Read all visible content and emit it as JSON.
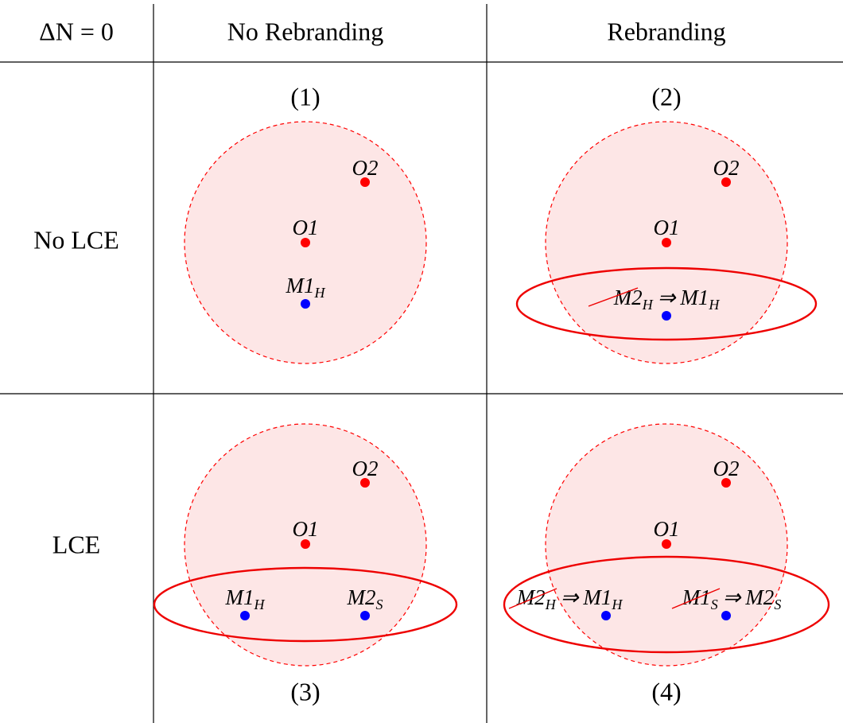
{
  "header": {
    "corner": "ΔN = 0",
    "columns": [
      "No Rebranding",
      "Rebranding"
    ]
  },
  "rows": [
    "No LCE",
    "LCE"
  ],
  "cells": [
    {
      "tag": "(1)",
      "labels": [
        {
          "text": "O2"
        },
        {
          "text": "O1"
        },
        {
          "text": "M1",
          "sub": "H"
        }
      ]
    },
    {
      "tag": "(2)",
      "labels": [
        {
          "text": "O2"
        },
        {
          "text": "O1"
        }
      ],
      "rebrands": [
        {
          "old": {
            "text": "M2",
            "sub": "H"
          },
          "arrow": "⇒",
          "new": {
            "text": "M1",
            "sub": "H"
          }
        }
      ]
    },
    {
      "tag": "(3)",
      "labels": [
        {
          "text": "O2"
        },
        {
          "text": "O1"
        },
        {
          "text": "M1",
          "sub": "H"
        },
        {
          "text": "M2",
          "sub": "S"
        }
      ]
    },
    {
      "tag": "(4)",
      "labels": [
        {
          "text": "O2"
        },
        {
          "text": "O1"
        }
      ],
      "rebrands": [
        {
          "old": {
            "text": "M2",
            "sub": "H"
          },
          "arrow": "⇒",
          "new": {
            "text": "M1",
            "sub": "H"
          }
        },
        {
          "old": {
            "text": "M1",
            "sub": "S"
          },
          "arrow": "⇒",
          "new": {
            "text": "M2",
            "sub": "S"
          }
        }
      ]
    }
  ]
}
